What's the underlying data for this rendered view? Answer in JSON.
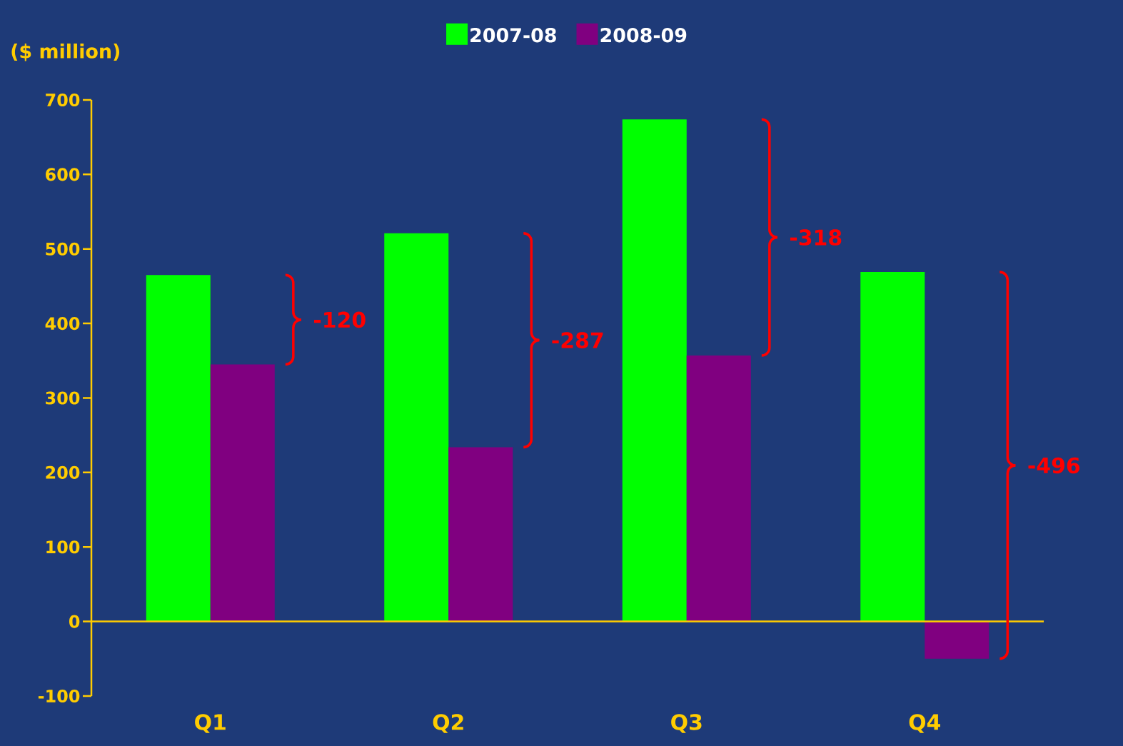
{
  "chart_data": {
    "type": "bar",
    "ylabel": "($ million)",
    "categories": [
      "Q1",
      "Q2",
      "Q3",
      "Q4"
    ],
    "series": [
      {
        "name": "2007-08",
        "color": "#00ff00",
        "values": [
          465,
          521,
          674,
          469
        ]
      },
      {
        "name": "2008-09",
        "color": "#800080",
        "values": [
          345,
          234,
          357,
          -50
        ]
      }
    ],
    "ylim": [
      -100,
      700
    ],
    "yticks": [
      -100,
      0,
      100,
      200,
      300,
      400,
      500,
      600,
      700
    ],
    "legend": "top",
    "ref_lines": [
      {
        "axis": "y",
        "value": 0,
        "color": "#ffcc00"
      }
    ],
    "annotations": [
      "-120",
      "-287",
      "-318",
      "-496"
    ]
  }
}
